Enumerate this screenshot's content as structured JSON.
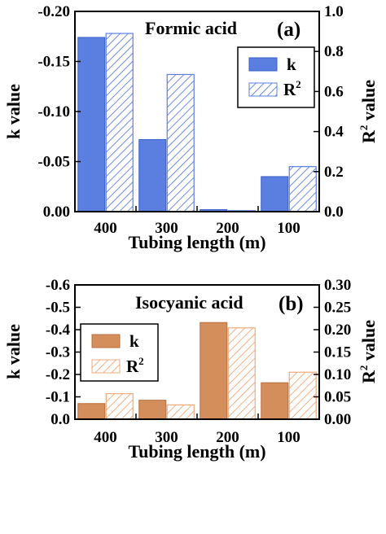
{
  "chart_data": [
    {
      "type": "bar",
      "title": "Formic acid",
      "panel_label": "(a)",
      "xlabel": "Tubing length (m)",
      "ylabel_left": "k value",
      "ylabel_right": "R",
      "ylabel_right_sup": "2",
      "ylabel_right_suffix": " value",
      "categories": [
        "400",
        "300",
        "200",
        "100"
      ],
      "left_axis": {
        "ylim": [
          0,
          -0.2
        ],
        "ticks": [
          "0.00",
          "-0.05",
          "-0.10",
          "-0.15",
          "-0.20"
        ],
        "tick_values": [
          0,
          -0.05,
          -0.1,
          -0.15,
          -0.2
        ]
      },
      "right_axis": {
        "ylim": [
          0,
          1.0
        ],
        "ticks": [
          "0.0",
          "0.2",
          "0.4",
          "0.6",
          "0.8",
          "1.0"
        ],
        "tick_values": [
          0,
          0.2,
          0.4,
          0.6,
          0.8,
          1.0
        ]
      },
      "series": [
        {
          "name": "k",
          "axis": "left",
          "values": [
            -0.174,
            -0.072,
            -0.002,
            -0.035
          ],
          "fill": "solid",
          "color": "#5b7fe0",
          "stroke": "#3a5fc8"
        },
        {
          "name": "R",
          "name_sup": "2",
          "axis": "right",
          "values": [
            0.89,
            0.685,
            0.005,
            0.225
          ],
          "fill": "hatch",
          "color": "#5b7fe0",
          "stroke": "#5b7fe0"
        }
      ],
      "legend": {
        "position": "upper-right"
      }
    },
    {
      "type": "bar",
      "title": "Isocyanic acid",
      "panel_label": "(b)",
      "xlabel": "Tubing length (m)",
      "ylabel_left": "k value",
      "ylabel_right": "R",
      "ylabel_right_sup": "2",
      "ylabel_right_suffix": " value",
      "categories": [
        "400",
        "300",
        "200",
        "100"
      ],
      "left_axis": {
        "ylim": [
          0,
          -0.6
        ],
        "ticks": [
          "0.0",
          "-0.1",
          "-0.2",
          "-0.3",
          "-0.4",
          "-0.5",
          "-0.6"
        ],
        "tick_values": [
          0,
          -0.1,
          -0.2,
          -0.3,
          -0.4,
          -0.5,
          -0.6
        ]
      },
      "right_axis": {
        "ylim": [
          0,
          0.3
        ],
        "ticks": [
          "0.00",
          "0.05",
          "0.10",
          "0.15",
          "0.20",
          "0.25",
          "0.30"
        ],
        "tick_values": [
          0,
          0.05,
          0.1,
          0.15,
          0.2,
          0.25,
          0.3
        ]
      },
      "series": [
        {
          "name": "k",
          "axis": "left",
          "values": [
            -0.07,
            -0.085,
            -0.432,
            -0.163
          ],
          "fill": "solid",
          "color": "#d48e5c",
          "stroke": "#b86f3c"
        },
        {
          "name": "R",
          "name_sup": "2",
          "axis": "right",
          "values": [
            0.057,
            0.032,
            0.204,
            0.105
          ],
          "fill": "hatch",
          "color": "#f0a878",
          "stroke": "#f0a878"
        }
      ],
      "legend": {
        "position": "upper-left"
      }
    }
  ]
}
